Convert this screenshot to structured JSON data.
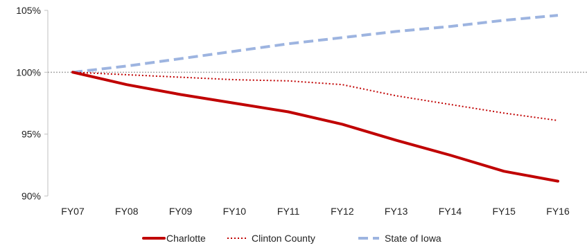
{
  "chart_data": {
    "type": "line",
    "categories": [
      "FY07",
      "FY08",
      "FY09",
      "FY10",
      "FY11",
      "FY12",
      "FY13",
      "FY14",
      "FY15",
      "FY16"
    ],
    "series": [
      {
        "name": "Charlotte",
        "values": [
          100.0,
          99.0,
          98.2,
          97.5,
          96.8,
          95.8,
          94.5,
          93.3,
          92.0,
          91.2
        ],
        "color": "#C00000",
        "style": "solid"
      },
      {
        "name": "Clinton County",
        "values": [
          100.0,
          99.8,
          99.6,
          99.4,
          99.3,
          99.0,
          98.1,
          97.4,
          96.7,
          96.1
        ],
        "color": "#C00000",
        "style": "dotted"
      },
      {
        "name": "State of Iowa",
        "values": [
          100.0,
          100.5,
          101.1,
          101.7,
          102.3,
          102.8,
          103.3,
          103.7,
          104.2,
          104.6
        ],
        "color": "#9DB4E0",
        "style": "dashed"
      }
    ],
    "y_ticks": [
      90,
      95,
      100,
      105
    ],
    "y_tick_labels": [
      "90%",
      "95%",
      "100%",
      "105%"
    ],
    "ylim": [
      90,
      105
    ],
    "reference_line": 100,
    "reference_color": "#A6A6A6",
    "legend_position": "bottom",
    "grid": false
  }
}
